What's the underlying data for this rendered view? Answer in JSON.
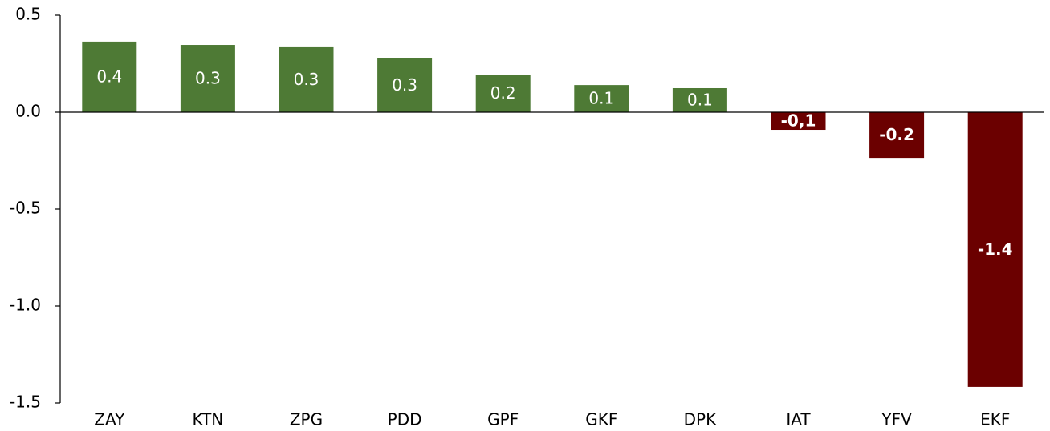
{
  "chart_data": {
    "type": "bar",
    "categories": [
      "ZAY",
      "KTN",
      "ZPG",
      "PDD",
      "GPF",
      "GKF",
      "DPK",
      "IAT",
      "YFV",
      "EKF"
    ],
    "values": [
      0.364,
      0.347,
      0.335,
      0.277,
      0.194,
      0.14,
      0.124,
      -0.091,
      -0.236,
      -1.417
    ],
    "value_labels": [
      "0.4",
      "0.3",
      "0.3",
      "0.3",
      "0.2",
      "0.1",
      "0.1",
      "-0,1",
      "-0.2",
      "-1.4"
    ],
    "colors": [
      "#4e7a35",
      "#4e7a35",
      "#4e7a35",
      "#4e7a35",
      "#4e7a35",
      "#4e7a35",
      "#4e7a35",
      "#6b0000",
      "#6b0000",
      "#6b0000"
    ],
    "ylim": [
      -1.5,
      0.5
    ],
    "yticks": [
      -1.5,
      {
        "value": -1.0,
        "label": "-1.0"
      },
      -0.5,
      {
        "value": 0.0,
        "label": "0.0"
      },
      0.5
    ],
    "grid": false
  }
}
